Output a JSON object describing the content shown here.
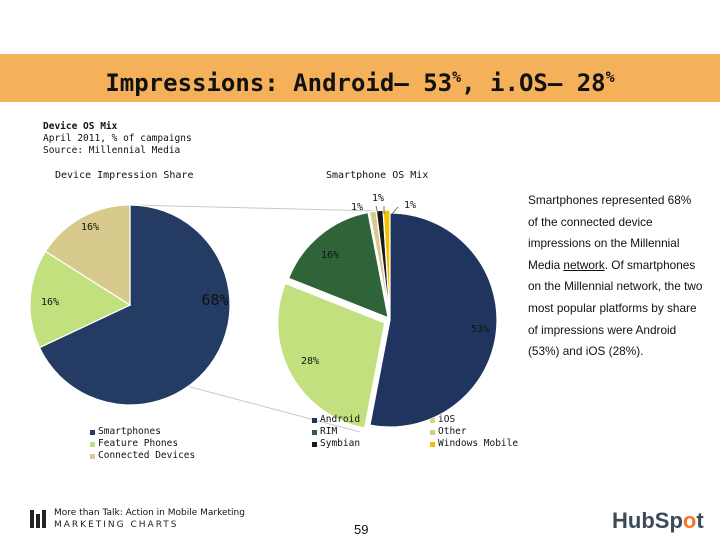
{
  "title": {
    "main": "Impressions: Android– 53",
    "pct1": "%",
    "mid": ", i.OS– 28",
    "pct2": "%"
  },
  "meta": {
    "line1": "Device OS Mix",
    "line2": "April 2011, % of campaigns",
    "line3": "Source: Millennial Media"
  },
  "colors": {
    "smartphones": "#243b63",
    "feature_phones": "#c3e07e",
    "connected_devices": "#d8c98c",
    "android": "#1f3560",
    "ios": "#c3e07e",
    "rim": "#2e6437",
    "other": "#d8c98c",
    "symbian": "#1a1a1a",
    "windows_mobile": "#f2c200",
    "title_bar": "#f5b05a"
  },
  "chart_data": [
    {
      "type": "pie",
      "title": "Device Impression Share",
      "categories": [
        "Smartphones",
        "Feature Phones",
        "Connected Devices"
      ],
      "values": [
        68,
        16,
        16
      ],
      "labels": [
        "68%",
        "16%",
        "16%"
      ],
      "legend": [
        "Smartphones",
        "Feature Phones",
        "Connected Devices"
      ]
    },
    {
      "type": "pie",
      "title": "Smartphone OS Mix",
      "categories": [
        "Android",
        "iOS",
        "RIM",
        "Other",
        "Symbian",
        "Windows Mobile"
      ],
      "values": [
        53,
        28,
        16,
        1,
        1,
        1
      ],
      "labels": [
        "53%",
        "28%",
        "16%",
        "1%",
        "1%",
        "1%"
      ],
      "legend": [
        "Android",
        "iOS",
        "RIM",
        "Other",
        "Symbian",
        "Windows Mobile"
      ]
    }
  ],
  "description": {
    "before_link": "Smartphones represented 68% of the connected device impressions on the Millennial Media ",
    "link": "network",
    "after_link": ". Of smartphones on the Millennial network, the two most popular platforms by share of impressions were Android (53%) and iOS (28%)."
  },
  "footer": {
    "logo_line1": "More than Talk: Action in Mobile Marketing",
    "logo_line2": "MARKETING CHARTS",
    "page_number": "59",
    "hubspot_a": "HubSp",
    "hubspot_o": "o",
    "hubspot_b": "t"
  }
}
